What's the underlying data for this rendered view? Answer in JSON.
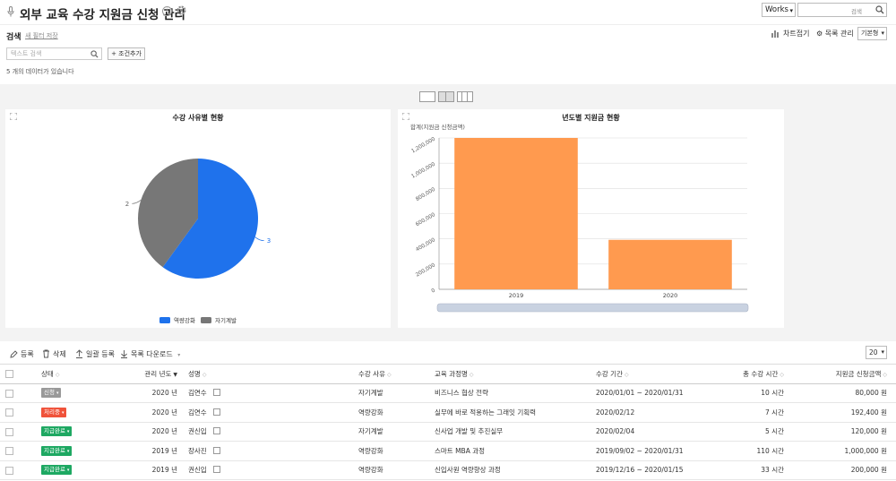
{
  "header": {
    "title": "외부 교육 수강 지원금 신청 관리",
    "info_label": "i",
    "scope": "Works",
    "search_label": "검색"
  },
  "search": {
    "title": "검색",
    "new_filter": "새 필터 저장",
    "placeholder": "텍스트 검색",
    "add_condition": "+ 조건추가",
    "count_text": "5 개의 데이터가 있습니다"
  },
  "view": {
    "chart_fold": "차트접기",
    "list_manage": "목록 관리",
    "mode": "기본형"
  },
  "pie_chart": {
    "title": "수강 사유별 현황",
    "labels": [
      "3",
      "2"
    ],
    "legend": [
      "역량강화",
      "자기계발"
    ]
  },
  "bar_chart": {
    "title": "년도별 지원금 현황",
    "ylabel": "합계(지원금 신청금액)",
    "yticks": [
      "1,200,000",
      "1,000,000",
      "800,000",
      "600,000",
      "400,000",
      "200,000",
      "0"
    ],
    "categories": [
      "2019",
      "2020"
    ]
  },
  "chart_data": [
    {
      "type": "pie",
      "title": "수강 사유별 현황",
      "categories": [
        "역량강화",
        "자기계발"
      ],
      "values": [
        3,
        2
      ],
      "colors": [
        "#1f72ec",
        "#777777"
      ],
      "legend": "bottom"
    },
    {
      "type": "bar",
      "title": "년도별 지원금 현황",
      "ylabel": "합계(지원금 신청금액)",
      "categories": [
        "2019",
        "2020"
      ],
      "values": [
        1200000,
        392400
      ],
      "ylim": [
        0,
        1200000
      ],
      "color": "#ff9a4f",
      "grid": true
    }
  ],
  "toolbar": {
    "register": "등록",
    "delete": "삭제",
    "bulk_register": "일괄 등록",
    "download": "목록 다운로드",
    "page_size": "20"
  },
  "table": {
    "headers": {
      "status": "상태",
      "year": "관리 년도",
      "name": "성명",
      "reason": "수강 사유",
      "course": "교육 과정명",
      "period": "수강 기간",
      "hours": "총 수강 시간",
      "amount": "지원금 신청금액"
    },
    "rows": [
      {
        "status": "신청",
        "status_color": "#999999",
        "year": "2020 년",
        "name": "김연수",
        "reason": "자기계발",
        "course": "비즈니스 협상 전략",
        "period": "2020/01/01 ~ 2020/01/31",
        "hours": "10 시간",
        "amount": "80,000 원"
      },
      {
        "status": "처리중",
        "status_color": "#f0523a",
        "year": "2020 년",
        "name": "김연수",
        "reason": "역량강화",
        "course": "실무에 바로 적용하는 그래잇 기획력",
        "period": "2020/02/12",
        "hours": "7 시간",
        "amount": "192,400 원"
      },
      {
        "status": "지급완료",
        "status_color": "#1ea862",
        "year": "2020 년",
        "name": "권신입",
        "reason": "자기계발",
        "course": "신사업 개발 및 추진실무",
        "period": "2020/02/04",
        "hours": "5 시간",
        "amount": "120,000 원"
      },
      {
        "status": "지급완료",
        "status_color": "#1ea862",
        "year": "2019 년",
        "name": "장사진",
        "reason": "역량강화",
        "course": "스마트 MBA 과정",
        "period": "2019/09/02 ~ 2020/01/31",
        "hours": "110 시간",
        "amount": "1,000,000 원"
      },
      {
        "status": "지급완료",
        "status_color": "#1ea862",
        "year": "2019 년",
        "name": "권신입",
        "reason": "역량강화",
        "course": "신입사원 역량향상 과정",
        "period": "2019/12/16 ~ 2020/01/15",
        "hours": "33 시간",
        "amount": "200,000 원"
      }
    ]
  }
}
